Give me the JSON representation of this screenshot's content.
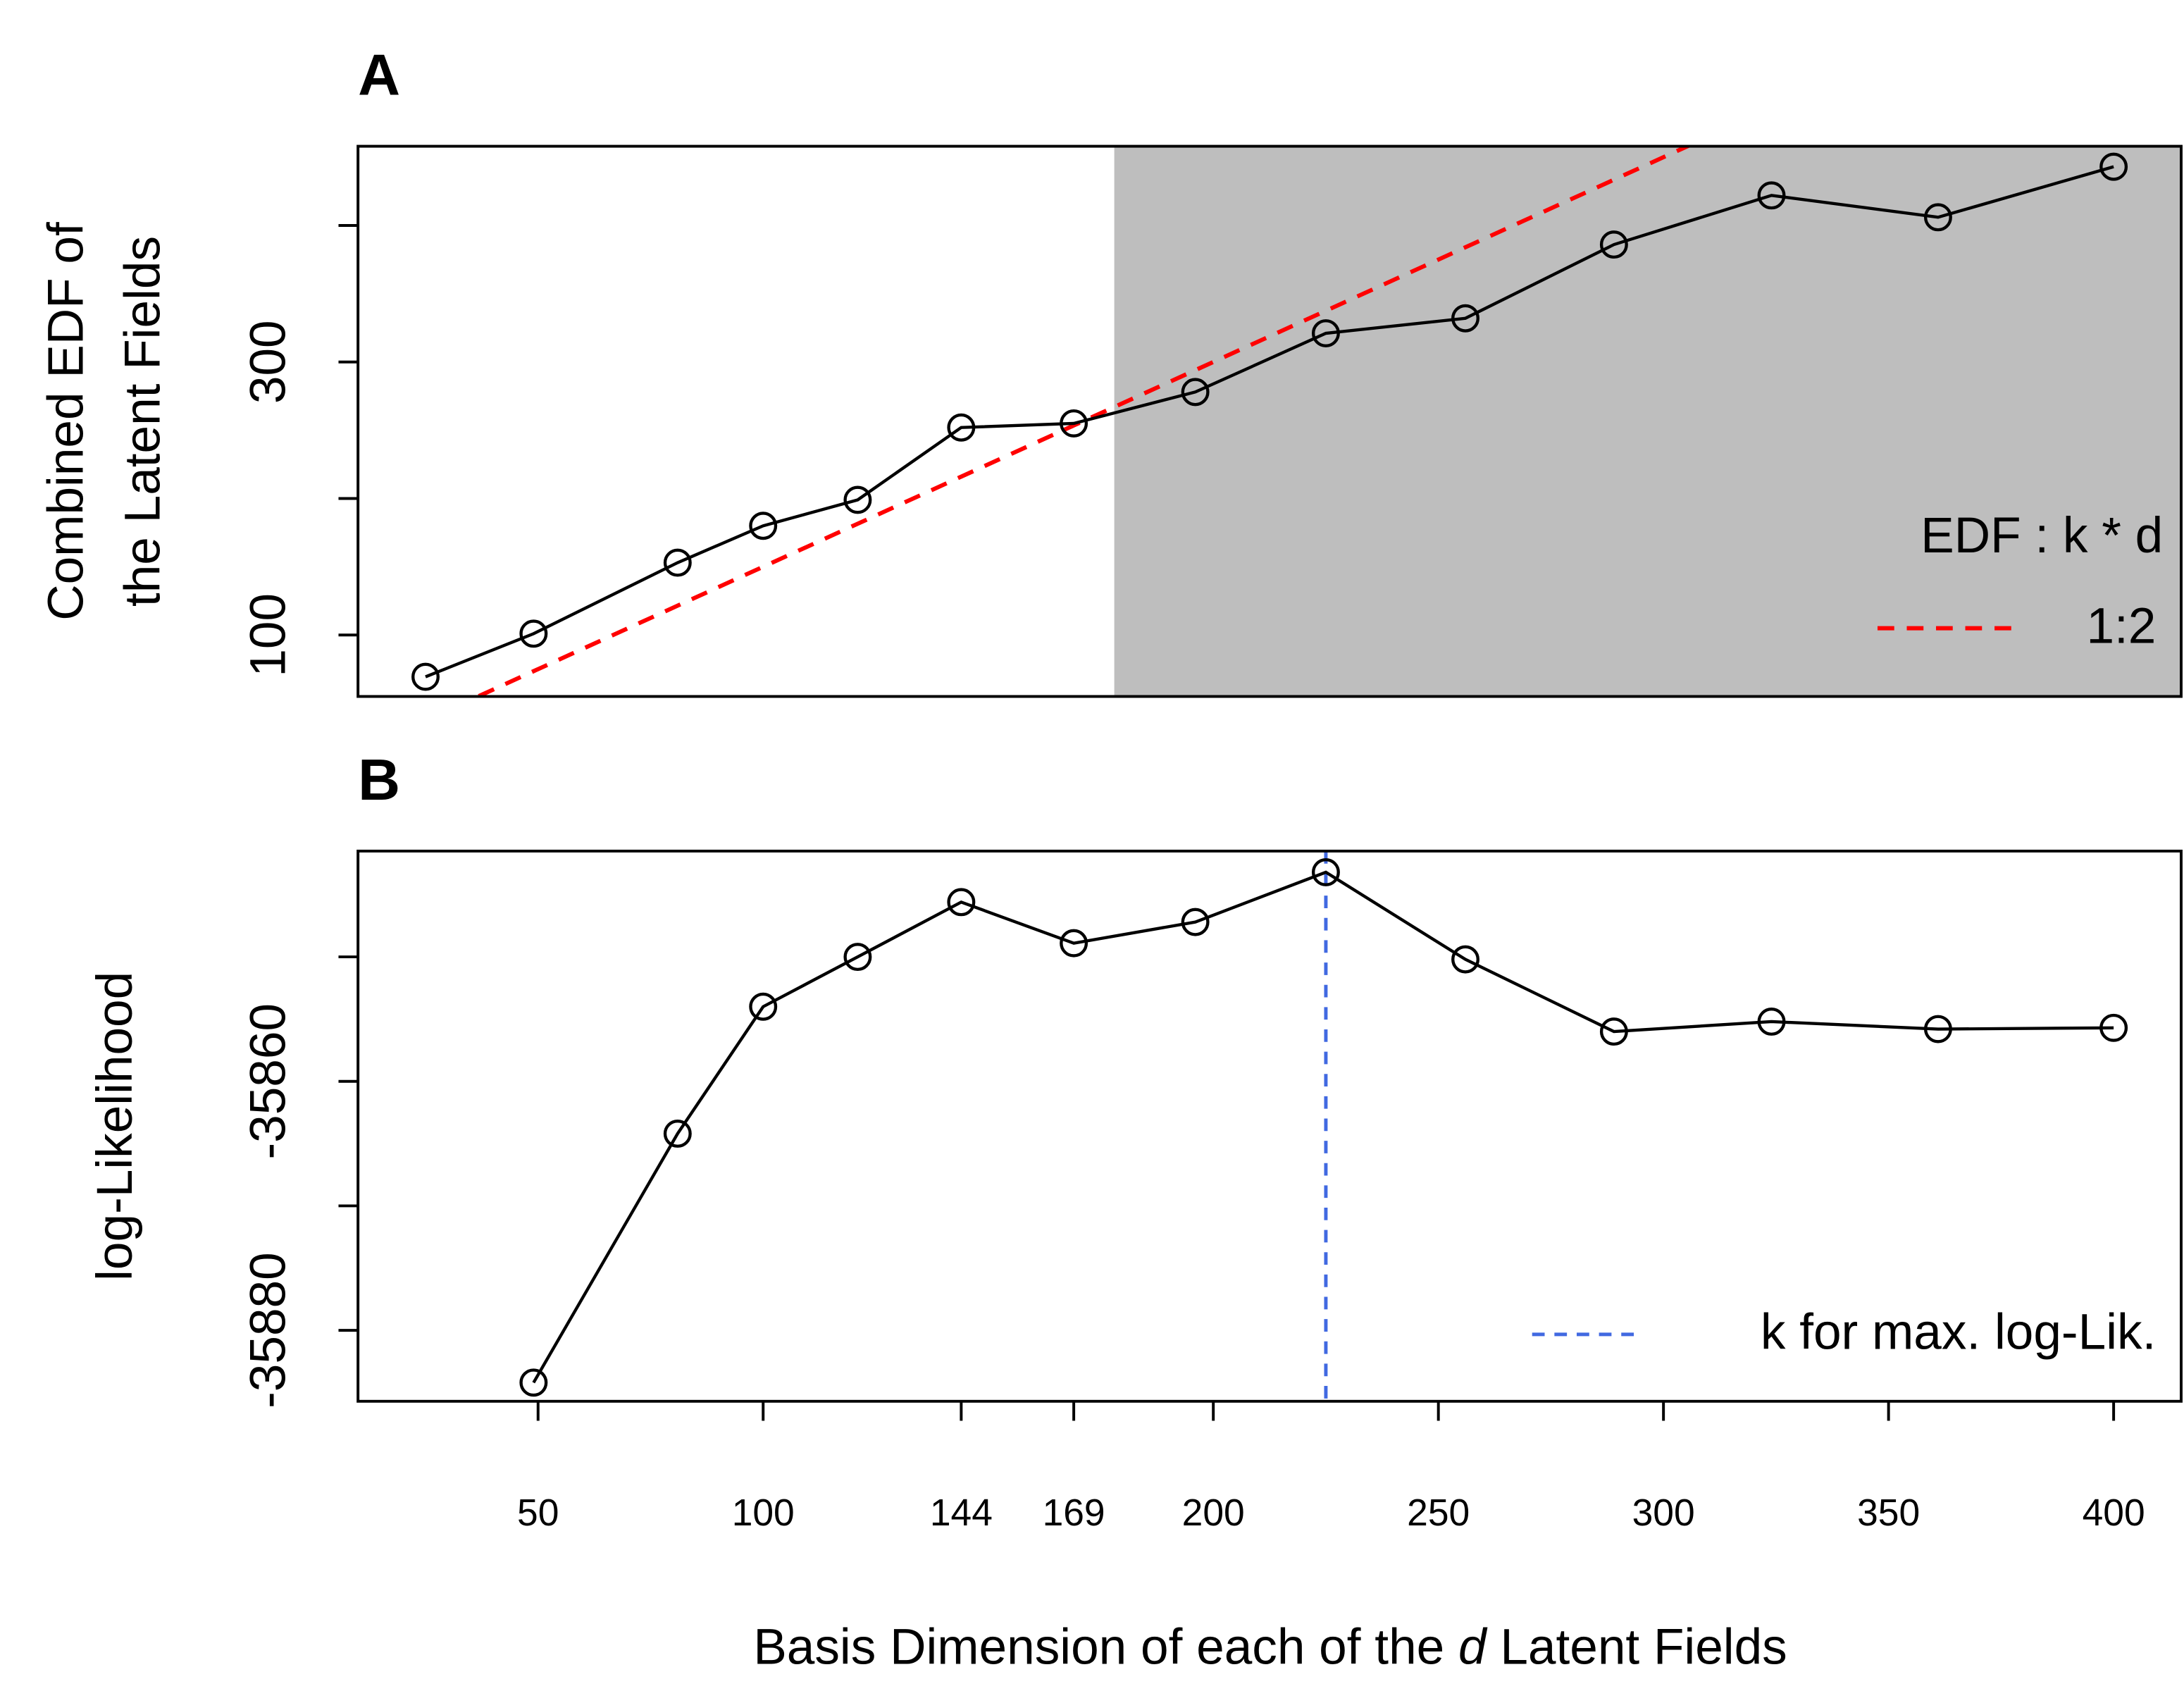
{
  "chart_data": [
    {
      "type": "line",
      "title": "A",
      "ylabel": [
        "Combined EDF of",
        "the Latent Fields"
      ],
      "xlim": [
        10,
        415
      ],
      "ylim": [
        55,
        458
      ],
      "yticks": [
        100,
        300
      ],
      "yticks_unlabeled": [
        200,
        400
      ],
      "x": [
        25,
        49,
        81,
        100,
        121,
        144,
        169,
        196,
        225,
        256,
        289,
        324,
        361,
        400
      ],
      "series": [
        {
          "color": "#000000",
          "values": [
            69.4,
            101,
            153,
            180,
            199,
            252,
            255,
            278,
            321,
            332,
            386,
            422,
            406,
            443
          ]
        }
      ],
      "shade": {
        "from": 178,
        "color": "#bebebe"
      },
      "reference_line": {
        "name": "1:2",
        "color": "#ff0000",
        "x": [
          25,
          400
        ],
        "values": [
          37.5,
          600
        ]
      },
      "legend_title": "EDF : k * d",
      "legend": "lower right"
    },
    {
      "type": "line",
      "title": "B",
      "ylabel": [
        "log-Likelihood"
      ],
      "xlim": [
        10,
        415
      ],
      "ylim": [
        -35885.7,
        -35841.5
      ],
      "yticks": [
        -35880,
        -35860
      ],
      "yticks_unlabeled": [
        -35870,
        -35850
      ],
      "xticks": [
        50,
        100,
        144,
        169,
        200,
        250,
        300,
        350,
        400
      ],
      "x": [
        49,
        81,
        100,
        121,
        144,
        169,
        196,
        225,
        256,
        289,
        324,
        361,
        400
      ],
      "series": [
        {
          "color": "#000000",
          "values": [
            -35884.2,
            -35864.2,
            -35854.0,
            -35850.0,
            -35845.6,
            -35848.9,
            -35847.2,
            -35843.2,
            -35850.2,
            -35856.0,
            -35855.2,
            -35855.8,
            -35855.7
          ]
        }
      ],
      "vline": {
        "name": "k for max. log-Lik.",
        "x": 225,
        "color": "#4169e1"
      },
      "xlabel": [
        "Basis Dimension of each of the ",
        "d",
        " Latent Fields"
      ],
      "legend": "lower right"
    }
  ]
}
